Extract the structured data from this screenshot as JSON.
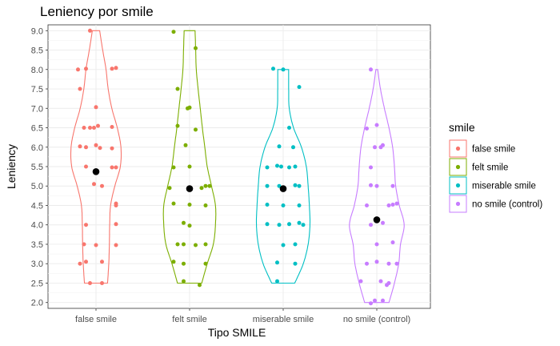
{
  "chart_data": {
    "type": "violin",
    "title": "Leniency por smile",
    "xlabel": "Tipo SMILE",
    "ylabel": "Leniency",
    "ylim": [
      1.85,
      9.15
    ],
    "yticks": [
      "2.0",
      "2.5",
      "3.0",
      "3.5",
      "4.0",
      "4.5",
      "5.0",
      "5.5",
      "6.0",
      "6.5",
      "7.0",
      "7.5",
      "8.0",
      "8.5",
      "9.0"
    ],
    "categories": [
      "false smile",
      "felt smile",
      "miserable smile",
      "no smile (control)"
    ],
    "legend": {
      "title": "smile",
      "position": "right"
    },
    "grid": true,
    "mean_color": "#000000",
    "series": [
      {
        "name": "false smile",
        "color": "#F8766D",
        "mean": 5.37,
        "range": [
          2.5,
          9.0
        ],
        "density": [
          [
            2.5,
            0.38
          ],
          [
            3.0,
            0.42
          ],
          [
            3.5,
            0.44
          ],
          [
            4.0,
            0.45
          ],
          [
            4.5,
            0.48
          ],
          [
            5.0,
            0.62
          ],
          [
            5.5,
            0.8
          ],
          [
            6.0,
            0.82
          ],
          [
            6.5,
            0.7
          ],
          [
            7.0,
            0.52
          ],
          [
            7.5,
            0.4
          ],
          [
            8.0,
            0.33
          ],
          [
            8.5,
            0.22
          ],
          [
            9.0,
            0.12
          ]
        ],
        "points": [
          [
            -0.03,
            9.0
          ],
          [
            -0.09,
            8.0
          ],
          [
            -0.05,
            8.02
          ],
          [
            0.08,
            8.02
          ],
          [
            0.1,
            8.04
          ],
          [
            -0.08,
            7.5
          ],
          [
            0.0,
            7.03
          ],
          [
            -0.06,
            6.5
          ],
          [
            -0.01,
            6.5
          ],
          [
            0.01,
            6.55
          ],
          [
            -0.03,
            6.5
          ],
          [
            0.08,
            6.52
          ],
          [
            -0.08,
            6.02
          ],
          [
            -0.05,
            6.0
          ],
          [
            0.0,
            6.05
          ],
          [
            0.02,
            5.98
          ],
          [
            0.08,
            5.97
          ],
          [
            -0.05,
            5.5
          ],
          [
            0.08,
            5.48
          ],
          [
            0.1,
            5.48
          ],
          [
            -0.01,
            5.05
          ],
          [
            0.03,
            5.0
          ],
          [
            0.1,
            4.55
          ],
          [
            0.1,
            4.5
          ],
          [
            -0.05,
            4.0
          ],
          [
            0.1,
            4.02
          ],
          [
            -0.06,
            3.5
          ],
          [
            0.0,
            3.48
          ],
          [
            0.1,
            3.48
          ],
          [
            -0.08,
            3.0
          ],
          [
            -0.05,
            3.05
          ],
          [
            0.03,
            3.05
          ],
          [
            -0.03,
            2.5
          ],
          [
            0.03,
            2.5
          ]
        ]
      },
      {
        "name": "felt smile",
        "color": "#7CAE00",
        "mean": 4.93,
        "range": [
          2.5,
          9.0
        ],
        "density": [
          [
            2.5,
            0.4
          ],
          [
            3.0,
            0.58
          ],
          [
            3.5,
            0.78
          ],
          [
            4.0,
            0.85
          ],
          [
            4.5,
            0.85
          ],
          [
            5.0,
            0.72
          ],
          [
            5.5,
            0.58
          ],
          [
            6.0,
            0.5
          ],
          [
            6.5,
            0.42
          ],
          [
            7.0,
            0.35
          ],
          [
            7.5,
            0.28
          ],
          [
            8.0,
            0.22
          ],
          [
            8.5,
            0.2
          ],
          [
            9.0,
            0.18
          ]
        ],
        "points": [
          [
            -0.08,
            8.97
          ],
          [
            0.03,
            8.55
          ],
          [
            -0.06,
            7.5
          ],
          [
            -0.01,
            7.0
          ],
          [
            0.0,
            7.02
          ],
          [
            -0.06,
            6.55
          ],
          [
            0.03,
            6.45
          ],
          [
            -0.02,
            6.05
          ],
          [
            -0.08,
            5.48
          ],
          [
            0.0,
            5.5
          ],
          [
            0.08,
            5.0
          ],
          [
            0.1,
            5.0
          ],
          [
            0.06,
            4.95
          ],
          [
            -0.1,
            4.95
          ],
          [
            -0.08,
            4.55
          ],
          [
            0.0,
            4.52
          ],
          [
            0.08,
            4.5
          ],
          [
            -0.03,
            4.05
          ],
          [
            0.0,
            3.98
          ],
          [
            -0.06,
            3.5
          ],
          [
            -0.03,
            3.5
          ],
          [
            0.03,
            3.48
          ],
          [
            0.08,
            3.5
          ],
          [
            -0.08,
            3.05
          ],
          [
            -0.03,
            3.0
          ],
          [
            0.08,
            3.0
          ],
          [
            -0.03,
            2.55
          ],
          [
            0.05,
            2.45
          ]
        ]
      },
      {
        "name": "miserable smile",
        "color": "#00BFC4",
        "mean": 4.93,
        "range": [
          2.5,
          8.0
        ],
        "density": [
          [
            2.5,
            0.38
          ],
          [
            3.0,
            0.66
          ],
          [
            3.5,
            0.82
          ],
          [
            4.0,
            0.88
          ],
          [
            4.5,
            0.86
          ],
          [
            5.0,
            0.82
          ],
          [
            5.5,
            0.76
          ],
          [
            6.0,
            0.6
          ],
          [
            6.5,
            0.34
          ],
          [
            7.0,
            0.2
          ],
          [
            7.5,
            0.18
          ],
          [
            8.0,
            0.18
          ]
        ],
        "points": [
          [
            -0.05,
            8.02
          ],
          [
            0.0,
            8.0
          ],
          [
            0.08,
            7.55
          ],
          [
            0.03,
            6.5
          ],
          [
            -0.02,
            6.02
          ],
          [
            0.05,
            6.0
          ],
          [
            -0.08,
            5.48
          ],
          [
            -0.03,
            5.52
          ],
          [
            -0.01,
            5.5
          ],
          [
            0.03,
            5.48
          ],
          [
            0.06,
            5.5
          ],
          [
            -0.08,
            5.0
          ],
          [
            -0.02,
            5.0
          ],
          [
            0.06,
            5.02
          ],
          [
            0.08,
            5.0
          ],
          [
            -0.08,
            4.52
          ],
          [
            0.0,
            4.5
          ],
          [
            0.08,
            4.5
          ],
          [
            -0.08,
            4.02
          ],
          [
            -0.02,
            4.0
          ],
          [
            0.03,
            4.02
          ],
          [
            0.08,
            4.05
          ],
          [
            0.1,
            4.0
          ],
          [
            0.0,
            3.48
          ],
          [
            0.06,
            3.5
          ],
          [
            -0.03,
            3.03
          ],
          [
            0.06,
            3.0
          ],
          [
            -0.03,
            2.55
          ]
        ]
      },
      {
        "name": "no smile (control)",
        "color": "#C77CFF",
        "mean": 4.13,
        "range": [
          2.0,
          8.0
        ],
        "density": [
          [
            2.0,
            0.4
          ],
          [
            2.5,
            0.58
          ],
          [
            3.0,
            0.72
          ],
          [
            3.5,
            0.78
          ],
          [
            4.0,
            0.9
          ],
          [
            4.5,
            0.74
          ],
          [
            5.0,
            0.62
          ],
          [
            5.5,
            0.58
          ],
          [
            6.0,
            0.52
          ],
          [
            6.5,
            0.4
          ],
          [
            7.0,
            0.25
          ],
          [
            7.5,
            0.12
          ],
          [
            8.0,
            0.03
          ]
        ],
        "points": [
          [
            -0.03,
            8.0
          ],
          [
            0.0,
            6.57
          ],
          [
            -0.05,
            6.48
          ],
          [
            -0.01,
            6.0
          ],
          [
            0.02,
            6.0
          ],
          [
            0.03,
            6.05
          ],
          [
            -0.03,
            5.48
          ],
          [
            -0.03,
            5.02
          ],
          [
            0.0,
            5.0
          ],
          [
            0.08,
            5.0
          ],
          [
            -0.05,
            4.5
          ],
          [
            0.08,
            4.52
          ],
          [
            0.1,
            4.55
          ],
          [
            0.06,
            4.5
          ],
          [
            -0.03,
            4.0
          ],
          [
            0.03,
            4.05
          ],
          [
            0.0,
            3.5
          ],
          [
            0.08,
            3.55
          ],
          [
            -0.05,
            3.0
          ],
          [
            0.0,
            3.05
          ],
          [
            0.06,
            3.0
          ],
          [
            0.1,
            3.0
          ],
          [
            -0.08,
            2.55
          ],
          [
            0.02,
            2.55
          ],
          [
            0.06,
            2.5
          ],
          [
            0.05,
            2.45
          ],
          [
            0.03,
            2.05
          ],
          [
            -0.01,
            2.05
          ],
          [
            -0.03,
            1.98
          ]
        ]
      }
    ]
  }
}
